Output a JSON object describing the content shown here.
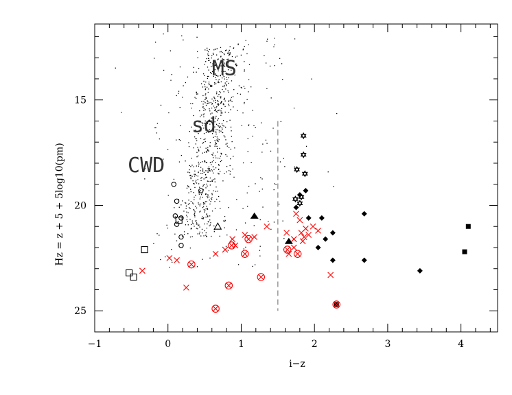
{
  "chart_data": {
    "type": "scatter",
    "title": "",
    "xlabel": "i−z",
    "ylabel": "Hz = z + 5 + 5log10(pm)",
    "xlim": [
      -1,
      4.5
    ],
    "ylim": [
      26,
      11.4
    ],
    "y_inverted": true,
    "x_ticks": [
      "−1",
      "0",
      "1",
      "2",
      "3",
      "4"
    ],
    "y_ticks": [
      "15",
      "20",
      "25"
    ],
    "grid": false,
    "legend": "none",
    "annotations": [
      {
        "text": "MS",
        "x": 0.6,
        "y": 13.5
      },
      {
        "text": "sd",
        "x": 0.32,
        "y": 16.2
      },
      {
        "text": "CWD",
        "x": -0.55,
        "y": 18.1
      }
    ],
    "divider": {
      "x": 1.5,
      "y_from": 16,
      "y_to": 25,
      "style": "dashed"
    },
    "colors": {
      "black": "#000000",
      "red": "#ff0000",
      "divider": "#999999"
    },
    "series": [
      {
        "marker": "open-circle",
        "color": "#000000",
        "points": [
          [
            0.08,
            19.0
          ],
          [
            0.12,
            19.8
          ],
          [
            0.1,
            20.5
          ],
          [
            0.12,
            20.9
          ],
          [
            0.18,
            21.5
          ],
          [
            0.18,
            21.9
          ],
          [
            0.18,
            20.6
          ],
          [
            0.45,
            19.3
          ]
        ]
      },
      {
        "marker": "open-square",
        "color": "#000000",
        "points": [
          [
            0.15,
            20.7
          ],
          [
            -0.32,
            22.1
          ],
          [
            -0.53,
            23.2
          ],
          [
            -0.47,
            23.4
          ]
        ]
      },
      {
        "marker": "open-triangle",
        "color": "#000000",
        "points": [
          [
            0.68,
            21.0
          ]
        ]
      },
      {
        "marker": "filled-triangle",
        "color": "#000000",
        "points": [
          [
            1.18,
            20.5
          ],
          [
            1.65,
            21.7
          ]
        ]
      },
      {
        "marker": "star",
        "color": "#000000",
        "points": [
          [
            1.85,
            16.7
          ],
          [
            1.85,
            17.6
          ],
          [
            1.76,
            18.3
          ],
          [
            1.87,
            18.5
          ],
          [
            1.74,
            19.7
          ],
          [
            1.82,
            19.6
          ],
          [
            1.8,
            19.9
          ]
        ]
      },
      {
        "marker": "filled-diamond",
        "color": "#000000",
        "points": [
          [
            1.8,
            19.5
          ],
          [
            1.88,
            19.3
          ],
          [
            1.75,
            20.1
          ],
          [
            1.92,
            20.6
          ],
          [
            2.1,
            20.6
          ],
          [
            2.15,
            21.6
          ],
          [
            2.05,
            22.0
          ],
          [
            2.25,
            21.3
          ],
          [
            2.25,
            22.6
          ],
          [
            2.68,
            20.4
          ],
          [
            2.68,
            22.6
          ],
          [
            3.44,
            23.1
          ]
        ]
      },
      {
        "marker": "filled-square",
        "color": "#000000",
        "points": [
          [
            4.1,
            21.0
          ],
          [
            4.05,
            22.2
          ],
          [
            2.3,
            24.7
          ]
        ]
      },
      {
        "marker": "cross",
        "color": "#ff0000",
        "points": [
          [
            -0.35,
            23.1
          ],
          [
            0.02,
            22.5
          ],
          [
            0.12,
            22.6
          ],
          [
            0.25,
            23.9
          ],
          [
            0.65,
            22.3
          ],
          [
            0.78,
            22.1
          ],
          [
            0.88,
            21.6
          ],
          [
            0.92,
            21.9
          ],
          [
            1.05,
            21.4
          ],
          [
            1.18,
            21.5
          ],
          [
            1.35,
            21.0
          ],
          [
            1.62,
            21.3
          ],
          [
            1.65,
            22.3
          ],
          [
            1.72,
            22.0
          ],
          [
            1.75,
            20.4
          ],
          [
            1.8,
            20.7
          ],
          [
            1.82,
            21.3
          ],
          [
            1.86,
            21.5
          ],
          [
            1.88,
            21.1
          ],
          [
            1.92,
            21.4
          ],
          [
            1.98,
            21.0
          ],
          [
            1.72,
            21.6
          ],
          [
            2.05,
            21.2
          ],
          [
            1.84,
            21.7
          ],
          [
            2.22,
            23.3
          ]
        ]
      },
      {
        "marker": "circled-cross",
        "color": "#ff0000",
        "points": [
          [
            0.32,
            22.8
          ],
          [
            0.87,
            21.9
          ],
          [
            1.1,
            21.6
          ],
          [
            1.05,
            22.3
          ],
          [
            1.63,
            22.1
          ],
          [
            1.77,
            22.3
          ],
          [
            0.83,
            23.8
          ],
          [
            1.27,
            23.4
          ],
          [
            0.65,
            24.9
          ],
          [
            2.3,
            24.7
          ]
        ]
      }
    ]
  }
}
